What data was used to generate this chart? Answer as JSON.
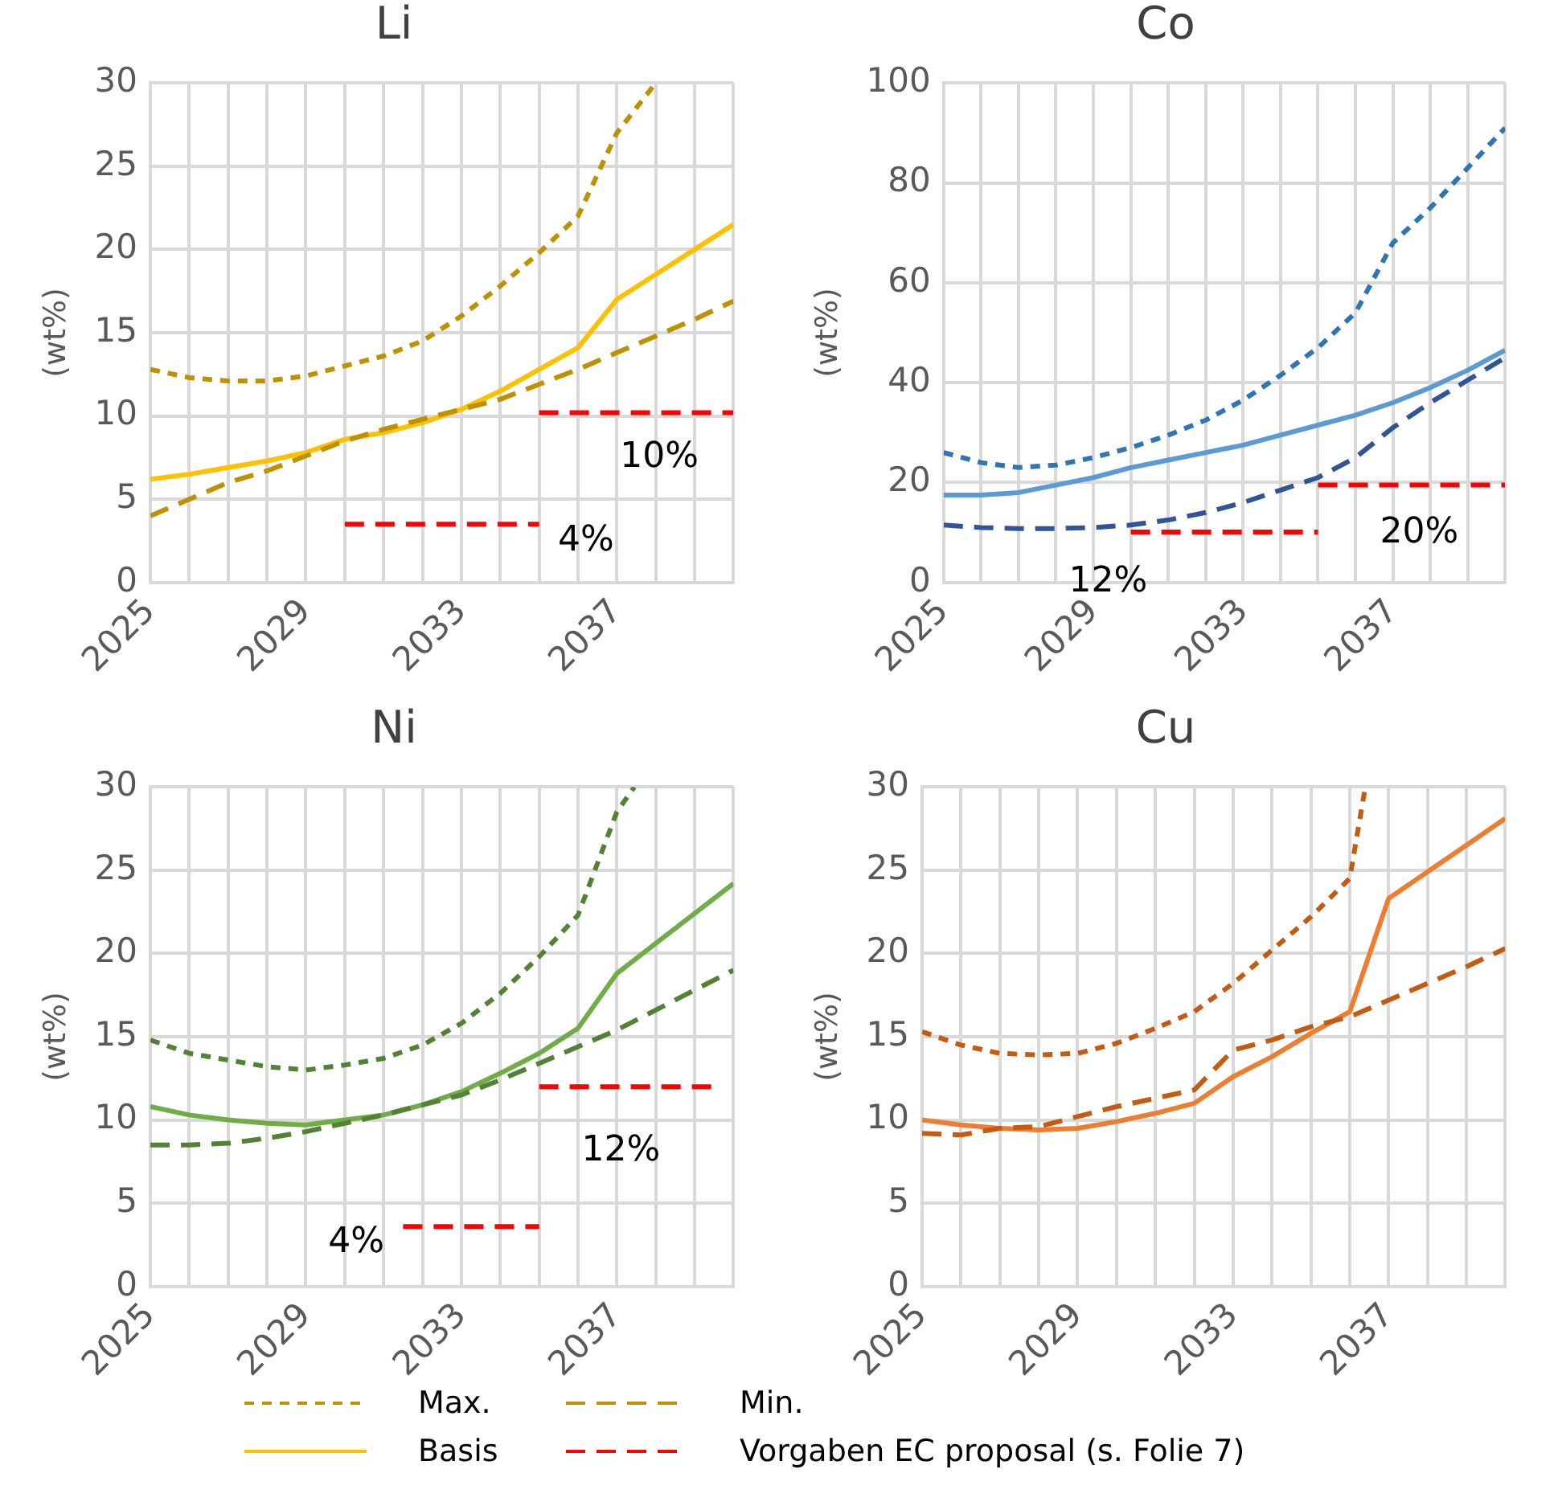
{
  "chart_data": [
    {
      "type": "line",
      "title": "Li",
      "ylabel": "(wt%)",
      "xlim": [
        2025,
        2040
      ],
      "ylim": [
        0,
        30
      ],
      "yticks": [
        0,
        5,
        10,
        15,
        20,
        25,
        30
      ],
      "xticks": [
        2025,
        {
          "value": 2026,
          "label": null
        },
        {
          "value": 2027,
          "label": null
        },
        {
          "value": 2028,
          "label": null
        },
        2029,
        {
          "value": 2030,
          "label": null
        },
        {
          "value": 2031,
          "label": null
        },
        {
          "value": 2032,
          "label": null
        },
        2033,
        {
          "value": 2034,
          "label": null
        },
        {
          "value": 2035,
          "label": null
        },
        {
          "value": 2036,
          "label": null
        },
        2037,
        {
          "value": 2038,
          "label": null
        },
        {
          "value": 2039,
          "label": null
        },
        {
          "value": 2040,
          "label": null
        }
      ],
      "grid": true,
      "legend": "bottom",
      "series": [
        {
          "name": "Max.",
          "color": "#bf9000",
          "line_style": "dotted",
          "x": [
            2025,
            2026,
            2027,
            2028,
            2029,
            2030,
            2031,
            2032,
            2033,
            2034,
            2035,
            2036,
            2037,
            2038
          ],
          "values": [
            12.8,
            12.3,
            12.1,
            12.1,
            12.4,
            13.0,
            13.6,
            14.5,
            16.0,
            17.8,
            19.8,
            22.0,
            27.0,
            30
          ]
        },
        {
          "name": "Min.",
          "color": "#bf9000",
          "line_style": "dashed",
          "x": [
            2025,
            2026,
            2027,
            2028,
            2029,
            2030,
            2031,
            2032,
            2033,
            2034,
            2035,
            2036,
            2037,
            2038,
            2039,
            2040
          ],
          "values": [
            4.0,
            5.0,
            6.0,
            6.7,
            7.6,
            8.5,
            9.2,
            9.8,
            10.4,
            11.0,
            11.9,
            12.8,
            13.8,
            14.8,
            15.8,
            16.9
          ]
        },
        {
          "name": "Basis",
          "color": "#ffc000",
          "line_style": "solid",
          "x": [
            2025,
            2026,
            2027,
            2028,
            2029,
            2030,
            2031,
            2032,
            2033,
            2034,
            2035,
            2036,
            2037,
            2038,
            2039,
            2040
          ],
          "values": [
            6.2,
            6.5,
            6.9,
            7.3,
            7.8,
            8.6,
            9.0,
            9.6,
            10.4,
            11.5,
            12.8,
            14.1,
            17.0,
            18.5,
            20.0,
            21.5
          ]
        },
        {
          "name": "Vorgaben EC proposal (s. Folie 7)",
          "color": "#ff0000",
          "line_style": "dashed",
          "x": [
            2030,
            2035
          ],
          "values": [
            3.5,
            3.5
          ]
        },
        {
          "color": "#ff0000",
          "line_style": "dashed",
          "x": [
            2035,
            2040
          ],
          "values": [
            10.2,
            10.2
          ]
        }
      ],
      "annotations": [
        "10%",
        "4%"
      ]
    },
    {
      "type": "line",
      "title": "Co",
      "ylabel": "(wt%)",
      "xlim": [
        2025,
        2040
      ],
      "ylim": [
        0,
        100
      ],
      "yticks": [
        0,
        20,
        40,
        60,
        80,
        100
      ],
      "xticks": [
        2025,
        {
          "value": 2026,
          "label": null
        },
        {
          "value": 2027,
          "label": null
        },
        {
          "value": 2028,
          "label": null
        },
        2029,
        {
          "value": 2030,
          "label": null
        },
        {
          "value": 2031,
          "label": null
        },
        {
          "value": 2032,
          "label": null
        },
        2033,
        {
          "value": 2034,
          "label": null
        },
        {
          "value": 2035,
          "label": null
        },
        {
          "value": 2036,
          "label": null
        },
        2037,
        {
          "value": 2038,
          "label": null
        },
        {
          "value": 2039,
          "label": null
        },
        {
          "value": 2040,
          "label": null
        }
      ],
      "grid": true,
      "series": [
        {
          "color": "#2e75b6",
          "line_style": "dotted",
          "x": [
            2025,
            2026,
            2027,
            2028,
            2029,
            2030,
            2031,
            2032,
            2033,
            2034,
            2035,
            2036,
            2037,
            2038,
            2039,
            2040
          ],
          "values": [
            26,
            24,
            23,
            23.5,
            25,
            27,
            29.5,
            32.5,
            36.5,
            41.5,
            47,
            54,
            68,
            75,
            83,
            91
          ]
        },
        {
          "color": "#2f5597",
          "line_style": "dashed",
          "x": [
            2025,
            2026,
            2027,
            2028,
            2029,
            2030,
            2031,
            2032,
            2033,
            2034,
            2035,
            2036,
            2037,
            2038,
            2039,
            2040
          ],
          "values": [
            11.5,
            11,
            10.8,
            10.8,
            11,
            11.5,
            12.5,
            14,
            16,
            18.5,
            21,
            25,
            31,
            36,
            40.5,
            45
          ]
        },
        {
          "color": "#5b9bd5",
          "line_style": "solid",
          "x": [
            2025,
            2026,
            2027,
            2028,
            2029,
            2030,
            2031,
            2032,
            2033,
            2034,
            2035,
            2036,
            2037,
            2038,
            2039,
            2040
          ],
          "values": [
            17.5,
            17.5,
            18,
            19.5,
            21,
            23,
            24.5,
            26,
            27.5,
            29.5,
            31.5,
            33.5,
            36,
            39,
            42.5,
            46.5
          ]
        },
        {
          "color": "#ff0000",
          "line_style": "dashed",
          "x": [
            2030,
            2035
          ],
          "values": [
            10.1,
            10.1
          ]
        },
        {
          "color": "#ff0000",
          "line_style": "dashed",
          "x": [
            2035,
            2040
          ],
          "values": [
            19.5,
            19.5
          ]
        }
      ],
      "annotations": [
        "20%",
        "12%"
      ]
    },
    {
      "type": "line",
      "title": "Ni",
      "ylabel": "(wt%)",
      "xlim": [
        2025,
        2040
      ],
      "ylim": [
        0,
        30
      ],
      "yticks": [
        0,
        5,
        10,
        15,
        20,
        25,
        30
      ],
      "xticks": [
        2025,
        {
          "value": 2026,
          "label": null
        },
        {
          "value": 2027,
          "label": null
        },
        {
          "value": 2028,
          "label": null
        },
        2029,
        {
          "value": 2030,
          "label": null
        },
        {
          "value": 2031,
          "label": null
        },
        {
          "value": 2032,
          "label": null
        },
        2033,
        {
          "value": 2034,
          "label": null
        },
        {
          "value": 2035,
          "label": null
        },
        {
          "value": 2036,
          "label": null
        },
        2037,
        {
          "value": 2038,
          "label": null
        },
        {
          "value": 2039,
          "label": null
        },
        {
          "value": 2040,
          "label": null
        }
      ],
      "grid": true,
      "series": [
        {
          "color": "#548235",
          "line_style": "dotted",
          "x": [
            2025,
            2026,
            2027,
            2028,
            2029,
            2030,
            2031,
            2032,
            2033,
            2034,
            2035,
            2036,
            2037,
            2037.45
          ],
          "values": [
            14.8,
            14.0,
            13.6,
            13.2,
            13.0,
            13.3,
            13.7,
            14.5,
            15.8,
            17.6,
            19.8,
            22.3,
            28.5,
            30
          ]
        },
        {
          "color": "#548235",
          "line_style": "dashed",
          "x": [
            2025,
            2026,
            2027,
            2028,
            2029,
            2030,
            2031,
            2032,
            2033,
            2034,
            2035,
            2036,
            2037,
            2038,
            2039,
            2040
          ],
          "values": [
            8.5,
            8.5,
            8.6,
            8.9,
            9.3,
            9.8,
            10.3,
            10.9,
            11.5,
            12.4,
            13.4,
            14.4,
            15.4,
            16.6,
            17.8,
            19.0
          ]
        },
        {
          "color": "#70ad47",
          "line_style": "solid",
          "x": [
            2025,
            2026,
            2027,
            2028,
            2029,
            2030,
            2031,
            2032,
            2033,
            2034,
            2035,
            2036,
            2037,
            2038,
            2039,
            2040
          ],
          "values": [
            10.8,
            10.3,
            10.0,
            9.8,
            9.7,
            10.0,
            10.3,
            10.9,
            11.7,
            12.8,
            14.0,
            15.5,
            18.8,
            20.6,
            22.4,
            24.2
          ]
        },
        {
          "color": "#ff0000",
          "line_style": "dashed",
          "x": [
            2031.5,
            2035
          ],
          "values": [
            3.6,
            3.6
          ]
        },
        {
          "color": "#ff0000",
          "line_style": "dashed",
          "x": [
            2035,
            2039.5
          ],
          "values": [
            12.0,
            12.0
          ]
        }
      ],
      "annotations": [
        "12%",
        "4%"
      ]
    },
    {
      "type": "line",
      "title": "Cu",
      "ylabel": "(wt%)",
      "xlim": [
        2025,
        2040
      ],
      "ylim": [
        0,
        30
      ],
      "yticks": [
        0,
        5,
        10,
        15,
        20,
        25,
        30
      ],
      "xticks": [
        2025,
        {
          "value": 2026,
          "label": null
        },
        {
          "value": 2027,
          "label": null
        },
        {
          "value": 2028,
          "label": null
        },
        2029,
        {
          "value": 2030,
          "label": null
        },
        {
          "value": 2031,
          "label": null
        },
        {
          "value": 2032,
          "label": null
        },
        2033,
        {
          "value": 2034,
          "label": null
        },
        {
          "value": 2035,
          "label": null
        },
        {
          "value": 2036,
          "label": null
        },
        2037,
        {
          "value": 2038,
          "label": null
        },
        {
          "value": 2039,
          "label": null
        },
        {
          "value": 2040,
          "label": null
        }
      ],
      "grid": true,
      "series": [
        {
          "color": "#c55a11",
          "line_style": "dotted",
          "x": [
            2025,
            2026,
            2027,
            2028,
            2029,
            2030,
            2031,
            2032,
            2033,
            2034,
            2035,
            2036,
            2036.4
          ],
          "values": [
            15.3,
            14.5,
            14.0,
            13.9,
            14.0,
            14.6,
            15.5,
            16.5,
            18.2,
            20.2,
            22.2,
            24.5,
            30
          ]
        },
        {
          "color": "#c55a11",
          "line_style": "dashed",
          "x": [
            2025,
            2026,
            2027,
            2028,
            2029,
            2030,
            2031,
            2032,
            2033,
            2034,
            2035,
            2036,
            2037,
            2038,
            2039,
            2040
          ],
          "values": [
            9.2,
            9.1,
            9.5,
            9.6,
            10.2,
            10.8,
            11.3,
            11.8,
            14.2,
            14.8,
            15.6,
            16.2,
            17.2,
            18.2,
            19.2,
            20.3
          ]
        },
        {
          "color": "#ed7d31",
          "line_style": "solid",
          "x": [
            2025,
            2026,
            2027,
            2028,
            2029,
            2030,
            2031,
            2032,
            2033,
            2034,
            2035,
            2036,
            2037,
            2038,
            2039,
            2040
          ],
          "values": [
            10.0,
            9.7,
            9.5,
            9.4,
            9.5,
            9.9,
            10.4,
            11.0,
            12.6,
            13.8,
            15.2,
            16.5,
            23.3,
            24.9,
            26.5,
            28.1
          ]
        }
      ]
    }
  ]
}
